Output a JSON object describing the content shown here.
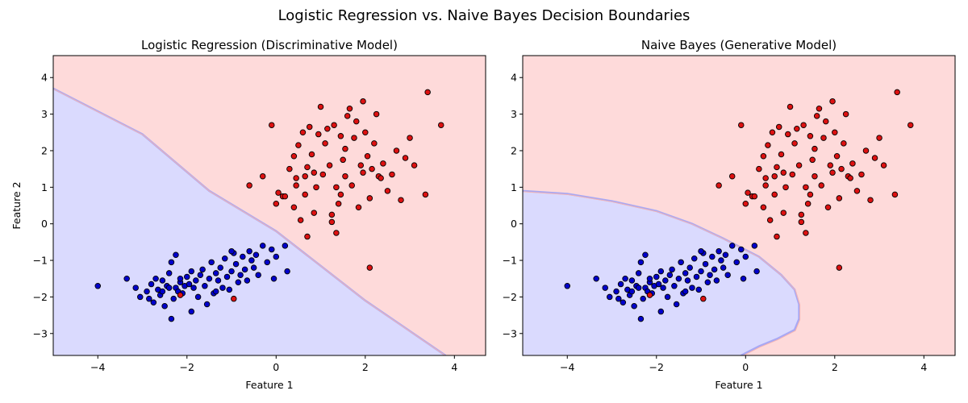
{
  "chart_data": {
    "title": "Logistic Regression vs. Naive Bayes Decision Boundaries",
    "type": "scatter",
    "colors": {
      "class0": "#0000cc",
      "class1": "#dd1111",
      "region0": "#dadafe",
      "region1": "#fedada",
      "boundary0": "#a8a8f4",
      "boundary1": "#f4b4b4"
    },
    "panels": [
      {
        "title": "Logistic Regression (Discriminative Model)",
        "xlabel": "Feature 1",
        "ylabel": "Feature 2",
        "xlim": [
          -5.0,
          4.7
        ],
        "ylim": [
          -3.6,
          4.6
        ],
        "xticks": [
          "−4",
          "−2",
          "0",
          "2",
          "4"
        ],
        "yticks": [
          "−3",
          "−2",
          "−1",
          "0",
          "1",
          "2",
          "3",
          "4"
        ],
        "boundary": [
          [
            -5.0,
            3.7
          ],
          [
            -3.0,
            2.45
          ],
          [
            -1.5,
            0.9
          ],
          [
            0.0,
            -0.2
          ],
          [
            2.0,
            -2.1
          ],
          [
            3.8,
            -3.6
          ]
        ]
      },
      {
        "title": "Naive Bayes (Generative Model)",
        "xlabel": "Feature 1",
        "ylabel": "",
        "xlim": [
          -5.0,
          4.7
        ],
        "ylim": [
          -3.6,
          4.6
        ],
        "xticks": [
          "−4",
          "−2",
          "0",
          "2",
          "4"
        ],
        "yticks": [
          "−3",
          "−2",
          "−1",
          "0",
          "1",
          "2",
          "3",
          "4"
        ],
        "boundary": [
          [
            -5.0,
            0.9
          ],
          [
            -4.0,
            0.82
          ],
          [
            -3.0,
            0.62
          ],
          [
            -2.0,
            0.35
          ],
          [
            -1.2,
            0.0
          ],
          [
            -0.5,
            -0.4
          ],
          [
            0.3,
            -0.9
          ],
          [
            0.8,
            -1.4
          ],
          [
            1.1,
            -1.8
          ],
          [
            1.2,
            -2.2
          ],
          [
            1.2,
            -2.6
          ],
          [
            1.1,
            -2.9
          ],
          [
            0.7,
            -3.15
          ],
          [
            0.3,
            -3.35
          ],
          [
            -0.1,
            -3.6
          ]
        ]
      }
    ],
    "class0_points": [
      [
        -4.0,
        -1.7
      ],
      [
        -3.35,
        -1.5
      ],
      [
        -3.15,
        -1.75
      ],
      [
        -3.05,
        -2.0
      ],
      [
        -2.9,
        -1.85
      ],
      [
        -2.85,
        -2.05
      ],
      [
        -2.8,
        -1.65
      ],
      [
        -2.75,
        -2.15
      ],
      [
        -2.7,
        -1.5
      ],
      [
        -2.65,
        -1.8
      ],
      [
        -2.6,
        -1.95
      ],
      [
        -2.55,
        -1.55
      ],
      [
        -2.5,
        -2.25
      ],
      [
        -2.45,
        -1.7
      ],
      [
        -2.4,
        -1.35
      ],
      [
        -2.35,
        -2.6
      ],
      [
        -2.35,
        -1.05
      ],
      [
        -2.3,
        -2.05
      ],
      [
        -2.25,
        -1.75
      ],
      [
        -2.2,
        -1.85
      ],
      [
        -2.15,
        -1.6
      ],
      [
        -2.1,
        -1.9
      ],
      [
        -2.05,
        -1.7
      ],
      [
        -2.0,
        -1.45
      ],
      [
        -1.95,
        -1.65
      ],
      [
        -1.9,
        -2.4
      ],
      [
        -1.9,
        -1.3
      ],
      [
        -1.85,
        -1.75
      ],
      [
        -1.8,
        -1.55
      ],
      [
        -1.75,
        -2.0
      ],
      [
        -1.7,
        -1.4
      ],
      [
        -1.65,
        -1.25
      ],
      [
        -1.6,
        -1.7
      ],
      [
        -1.55,
        -2.2
      ],
      [
        -1.5,
        -1.5
      ],
      [
        -1.45,
        -1.05
      ],
      [
        -1.4,
        -1.9
      ],
      [
        -1.35,
        -1.35
      ],
      [
        -1.3,
        -1.55
      ],
      [
        -1.25,
        -1.2
      ],
      [
        -1.2,
        -1.75
      ],
      [
        -1.15,
        -0.95
      ],
      [
        -1.1,
        -1.45
      ],
      [
        -1.05,
        -1.8
      ],
      [
        -1.0,
        -1.3
      ],
      [
        -0.95,
        -0.8
      ],
      [
        -0.9,
        -1.1
      ],
      [
        -0.85,
        -1.6
      ],
      [
        -0.8,
        -1.4
      ],
      [
        -0.75,
        -0.9
      ],
      [
        -0.7,
        -1.25
      ],
      [
        -0.65,
        -1.55
      ],
      [
        -0.6,
        -0.75
      ],
      [
        -0.55,
        -1.0
      ],
      [
        -0.5,
        -1.2
      ],
      [
        -0.45,
        -0.85
      ],
      [
        -0.4,
        -1.4
      ],
      [
        -0.3,
        -0.6
      ],
      [
        -0.2,
        -1.05
      ],
      [
        -0.1,
        -0.7
      ],
      [
        0.0,
        -0.9
      ],
      [
        0.2,
        -0.6
      ],
      [
        0.25,
        -1.3
      ],
      [
        -2.25,
        -0.85
      ],
      [
        -2.15,
        -1.5
      ],
      [
        -2.4,
        -1.75
      ],
      [
        -1.35,
        -1.85
      ],
      [
        -2.55,
        -1.85
      ],
      [
        -1.0,
        -0.75
      ],
      [
        -0.05,
        -1.5
      ]
    ],
    "class1_points": [
      [
        -0.1,
        2.7
      ],
      [
        -0.3,
        1.3
      ],
      [
        -0.6,
        1.05
      ],
      [
        0.0,
        0.55
      ],
      [
        0.05,
        0.85
      ],
      [
        0.15,
        0.75
      ],
      [
        0.3,
        1.5
      ],
      [
        0.4,
        1.85
      ],
      [
        0.4,
        0.45
      ],
      [
        0.45,
        1.25
      ],
      [
        0.5,
        2.15
      ],
      [
        0.55,
        0.1
      ],
      [
        0.6,
        2.5
      ],
      [
        0.65,
        0.8
      ],
      [
        0.7,
        1.55
      ],
      [
        0.7,
        -0.35
      ],
      [
        0.75,
        2.65
      ],
      [
        0.8,
        1.9
      ],
      [
        0.85,
        0.3
      ],
      [
        0.9,
        1.0
      ],
      [
        0.95,
        2.45
      ],
      [
        1.0,
        3.2
      ],
      [
        1.05,
        1.35
      ],
      [
        1.1,
        2.2
      ],
      [
        1.15,
        2.6
      ],
      [
        1.2,
        1.6
      ],
      [
        1.25,
        0.05
      ],
      [
        1.3,
        2.7
      ],
      [
        1.35,
        1.0
      ],
      [
        1.4,
        0.55
      ],
      [
        1.45,
        2.4
      ],
      [
        1.5,
        1.75
      ],
      [
        1.55,
        1.3
      ],
      [
        1.6,
        2.95
      ],
      [
        1.65,
        3.15
      ],
      [
        1.7,
        1.05
      ],
      [
        1.75,
        2.35
      ],
      [
        1.8,
        2.8
      ],
      [
        1.85,
        0.45
      ],
      [
        1.9,
        1.6
      ],
      [
        1.95,
        3.35
      ],
      [
        2.0,
        2.5
      ],
      [
        2.05,
        1.85
      ],
      [
        2.1,
        0.7
      ],
      [
        2.15,
        1.5
      ],
      [
        2.2,
        2.2
      ],
      [
        2.25,
        3.0
      ],
      [
        2.3,
        1.3
      ],
      [
        2.4,
        1.65
      ],
      [
        2.5,
        0.9
      ],
      [
        2.6,
        1.35
      ],
      [
        2.7,
        2.0
      ],
      [
        2.8,
        0.65
      ],
      [
        2.9,
        1.8
      ],
      [
        3.0,
        2.35
      ],
      [
        3.1,
        1.6
      ],
      [
        3.35,
        0.8
      ],
      [
        3.4,
        3.6
      ],
      [
        3.7,
        2.7
      ],
      [
        2.1,
        -1.2
      ],
      [
        0.2,
        0.75
      ],
      [
        1.35,
        -0.25
      ],
      [
        1.25,
        0.25
      ],
      [
        0.45,
        1.05
      ],
      [
        1.95,
        1.4
      ],
      [
        2.35,
        1.25
      ],
      [
        0.85,
        1.4
      ],
      [
        1.45,
        0.8
      ],
      [
        0.65,
        1.3
      ],
      [
        1.55,
        2.05
      ],
      [
        -0.95,
        -2.05
      ],
      [
        -2.15,
        -1.95
      ]
    ]
  }
}
